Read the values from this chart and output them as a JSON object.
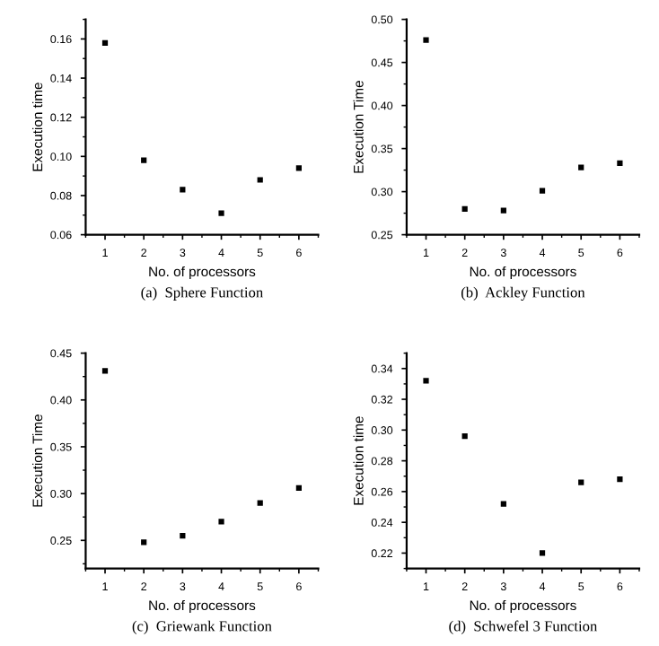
{
  "chart_data": [
    {
      "type": "scatter",
      "title": "(a)  Sphere Function",
      "xlabel": "No. of processors",
      "ylabel": "Execution time",
      "x": [
        1,
        2,
        3,
        4,
        5,
        6
      ],
      "values": [
        0.158,
        0.098,
        0.083,
        0.071,
        0.088,
        0.094
      ],
      "color": "#000000",
      "marker": "square",
      "xlim": [
        0.5,
        6.5
      ],
      "xticks": [
        1,
        2,
        3,
        4,
        5,
        6
      ],
      "ylim": [
        0.06,
        0.17
      ],
      "yticks": [
        0.06,
        0.08,
        {
          "value": 0.1,
          "label": "0.10"
        },
        0.12,
        0.14,
        0.16
      ],
      "grid": false
    },
    {
      "type": "scatter",
      "title": "(b)  Ackley Function",
      "xlabel": "No. of processors",
      "ylabel": "Execution Time",
      "x": [
        1,
        2,
        3,
        4,
        5,
        6
      ],
      "values": [
        0.476,
        0.28,
        0.278,
        0.301,
        0.328,
        0.333
      ],
      "color": "#000000",
      "marker": "square",
      "xlim": [
        0.5,
        6.5
      ],
      "xticks": [
        1,
        2,
        3,
        4,
        5,
        6
      ],
      "ylim": [
        0.25,
        0.5
      ],
      "yticks": [
        0.25,
        {
          "value": 0.3,
          "label": "0.30"
        },
        0.35,
        {
          "value": 0.4,
          "label": "0.40"
        },
        0.45,
        {
          "value": 0.5,
          "label": "0.50"
        }
      ],
      "grid": false
    },
    {
      "type": "scatter",
      "title": "(c)  Griewank Function",
      "xlabel": "No. of processors",
      "ylabel": "Execution Time",
      "x": [
        1,
        2,
        3,
        4,
        5,
        6
      ],
      "values": [
        0.431,
        0.248,
        0.255,
        0.27,
        0.29,
        0.306
      ],
      "color": "#000000",
      "marker": "square",
      "xlim": [
        0.5,
        6.5
      ],
      "xticks": [
        1,
        2,
        3,
        4,
        5,
        6
      ],
      "ylim": [
        0.22,
        0.45
      ],
      "yticks": [
        0.25,
        {
          "value": 0.3,
          "label": "0.30"
        },
        0.35,
        {
          "value": 0.4,
          "label": "0.40"
        },
        0.45
      ],
      "grid": false
    },
    {
      "type": "scatter",
      "title": "(d)  Schwefel 3 Function",
      "xlabel": "No. of processors",
      "ylabel": "Execution time",
      "x": [
        1,
        2,
        3,
        4,
        5,
        6
      ],
      "values": [
        0.332,
        0.296,
        0.252,
        0.22,
        0.266,
        0.268
      ],
      "color": "#000000",
      "marker": "square",
      "xlim": [
        0.5,
        6.5
      ],
      "xticks": [
        1,
        2,
        3,
        4,
        5,
        6
      ],
      "ylim": [
        0.21,
        0.35
      ],
      "yticks": [
        0.22,
        0.24,
        0.26,
        0.28,
        {
          "value": 0.3,
          "label": "0.30"
        },
        0.32,
        0.34
      ],
      "grid": false
    }
  ]
}
